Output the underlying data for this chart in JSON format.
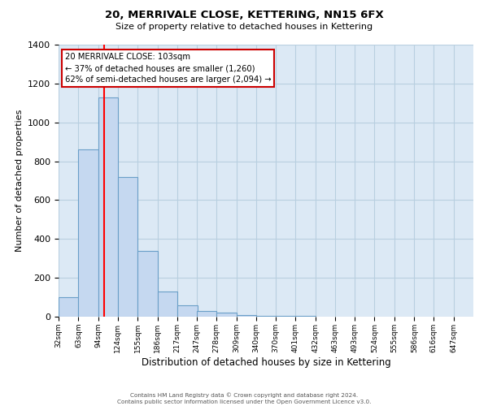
{
  "title": "20, MERRIVALE CLOSE, KETTERING, NN15 6FX",
  "subtitle": "Size of property relative to detached houses in Kettering",
  "xlabel": "Distribution of detached houses by size in Kettering",
  "ylabel": "Number of detached properties",
  "bin_labels": [
    "32sqm",
    "63sqm",
    "94sqm",
    "124sqm",
    "155sqm",
    "186sqm",
    "217sqm",
    "247sqm",
    "278sqm",
    "309sqm",
    "340sqm",
    "370sqm",
    "401sqm",
    "432sqm",
    "463sqm",
    "493sqm",
    "524sqm",
    "555sqm",
    "586sqm",
    "616sqm",
    "647sqm"
  ],
  "bin_edges": [
    32,
    63,
    94,
    124,
    155,
    186,
    217,
    247,
    278,
    309,
    340,
    370,
    401,
    432,
    463,
    493,
    524,
    555,
    586,
    616,
    647
  ],
  "bar_heights": [
    100,
    860,
    1130,
    720,
    340,
    130,
    60,
    30,
    20,
    10,
    5,
    5,
    5,
    0,
    0,
    0,
    0,
    0,
    0,
    0
  ],
  "bar_color": "#c5d8f0",
  "bar_edge_color": "#6a9fc8",
  "red_line_x": 103,
  "annotation_text_line1": "20 MERRIVALE CLOSE: 103sqm",
  "annotation_text_line2": "← 37% of detached houses are smaller (1,260)",
  "annotation_text_line3": "62% of semi-detached houses are larger (2,094) →",
  "annotation_box_facecolor": "#ffffff",
  "annotation_border_color": "#cc0000",
  "ylim": [
    0,
    1400
  ],
  "yticks": [
    0,
    200,
    400,
    600,
    800,
    1000,
    1200,
    1400
  ],
  "footer_line1": "Contains HM Land Registry data © Crown copyright and database right 2024.",
  "footer_line2": "Contains public sector information licensed under the Open Government Licence v3.0.",
  "background_color": "#ffffff",
  "plot_bg_color": "#dce9f5",
  "grid_color": "#b8cfe0"
}
